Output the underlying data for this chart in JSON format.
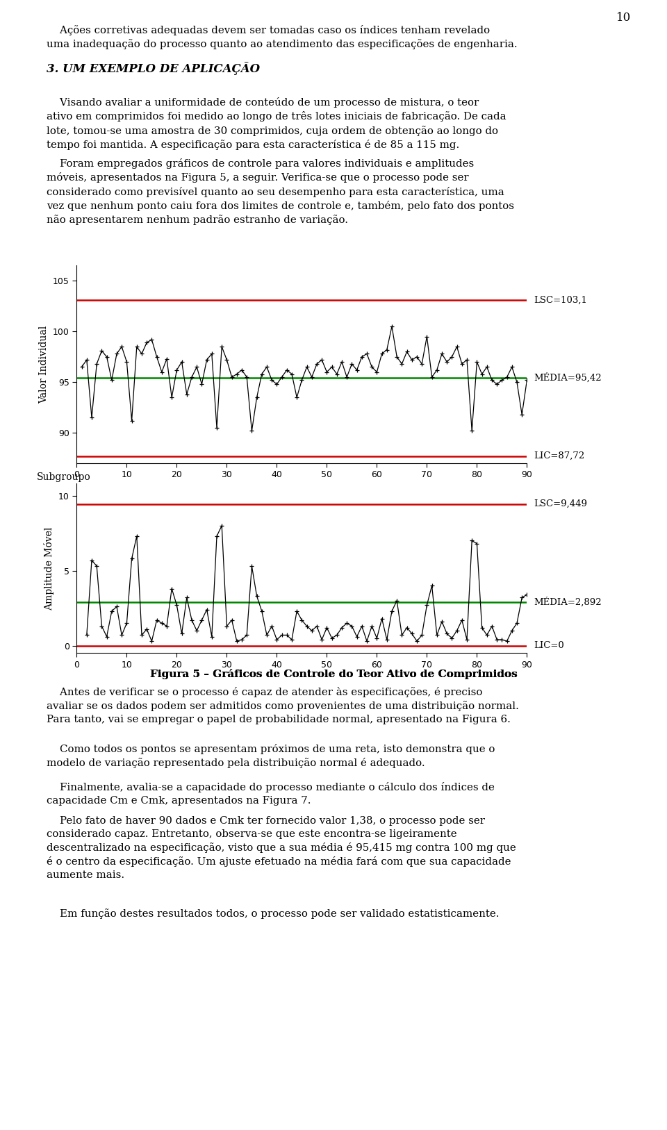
{
  "page_number": "10",
  "chart1": {
    "ylabel": "Valor Individual",
    "xlabel_bottom": "Subgroupo",
    "xlim": [
      0,
      90
    ],
    "yticks": [
      90,
      95,
      100,
      105
    ],
    "xticks": [
      0,
      10,
      20,
      30,
      40,
      50,
      60,
      70,
      80,
      90
    ],
    "lsc": 103.1,
    "media": 95.42,
    "lic": 87.72,
    "ylim_low": 87.0,
    "ylim_high": 106.5,
    "lsc_label": "LSC=103,1",
    "media_label": "MÉDIA=95,42",
    "lic_label": "LIC=87,72",
    "line_color": "#000000",
    "lsc_color": "#cc0000",
    "media_color": "#008800",
    "lic_color": "#cc0000"
  },
  "chart2": {
    "ylabel": "Amplitude Móvel",
    "xlim": [
      0,
      90
    ],
    "yticks": [
      0,
      5,
      10
    ],
    "xticks": [
      0,
      10,
      20,
      30,
      40,
      50,
      60,
      70,
      80,
      90
    ],
    "lsc": 9.449,
    "media": 2.892,
    "lic": 0.0,
    "ylim_low": -0.5,
    "ylim_high": 10.8,
    "lsc_label": "LSC=9,449",
    "media_label": "MÉDIA=2,892",
    "lic_label": "LIC=0",
    "line_color": "#000000",
    "lsc_color": "#cc0000",
    "media_color": "#008800",
    "lic_color": "#cc0000"
  },
  "figure_caption": "Figura 5",
  "figure_caption_rest": " – Gráficos de Controle do Teor Ativo de Comprimidos",
  "background_color": "#ffffff",
  "text_color": "#000000",
  "indiv_values": [
    96.5,
    97.2,
    91.5,
    96.8,
    98.1,
    97.5,
    95.2,
    97.8,
    98.5,
    97.0,
    91.2,
    98.5,
    97.8,
    98.9,
    99.2,
    97.5,
    96.0,
    97.3,
    93.5,
    96.2,
    97.0,
    93.8,
    95.5,
    96.5,
    94.8,
    97.2,
    97.8,
    90.5,
    98.5,
    97.2,
    95.5,
    95.8,
    96.2,
    95.5,
    90.2,
    93.5,
    95.8,
    96.5,
    95.2,
    94.8,
    95.5,
    96.2,
    95.8,
    93.5,
    95.2,
    96.5,
    95.5,
    96.8,
    97.2,
    96.0,
    96.5,
    95.8,
    97.0,
    95.5,
    96.8,
    96.2,
    97.5,
    97.8,
    96.5,
    96.0,
    97.8,
    98.2,
    100.5,
    97.5,
    96.8,
    98.0,
    97.2,
    97.5,
    96.8,
    99.5,
    95.5,
    96.2,
    97.8,
    97.0,
    97.5,
    98.5,
    96.8,
    97.2,
    90.2,
    97.0,
    95.8,
    96.5,
    95.2,
    94.8,
    95.2,
    95.5,
    96.5,
    95.0,
    91.8,
    95.2
  ]
}
